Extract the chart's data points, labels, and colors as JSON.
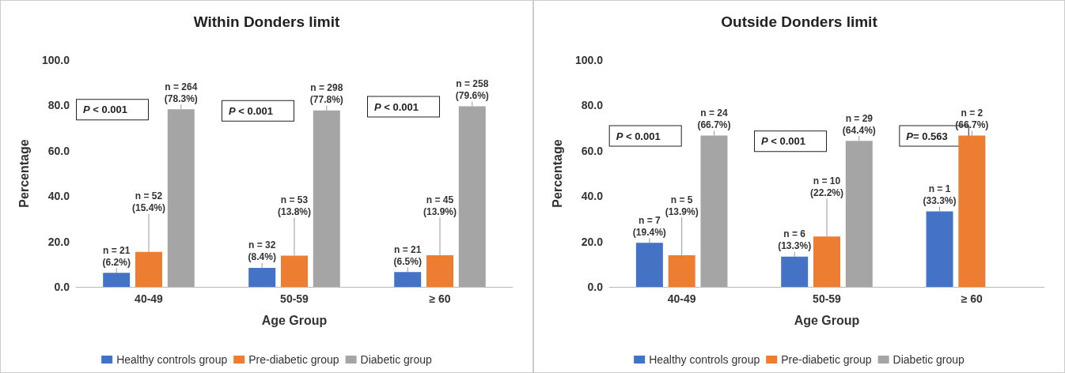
{
  "chart_data": [
    {
      "type": "bar",
      "title": "Within Donders limit",
      "xlabel": "Age Group",
      "ylabel": "Percentage",
      "categories": [
        "40-49",
        "50-59",
        "≥ 60"
      ],
      "series": [
        {
          "name": "Healthy controls group",
          "color": "#4472c4",
          "values": [
            6.2,
            8.4,
            6.5
          ],
          "value_labels": [
            "n = 21\n(6.2%)",
            "n = 32\n(8.4%)",
            "n = 21\n(6.5%)"
          ]
        },
        {
          "name": "Pre-diabetic group",
          "color": "#ed7d31",
          "values": [
            15.4,
            13.8,
            13.9
          ],
          "value_labels": [
            "n = 52\n(15.4%)",
            "n = 53\n(13.8%)",
            "n = 45\n(13.9%)"
          ]
        },
        {
          "name": "Diabetic group",
          "color": "#a5a5a5",
          "values": [
            78.3,
            77.8,
            79.6
          ],
          "value_labels": [
            "n = 264\n(78.3%)",
            "n = 298\n(77.8%)",
            "n = 258\n(79.6%)"
          ]
        }
      ],
      "ylim": [
        0,
        100
      ],
      "yticks": [
        {
          "value": 0,
          "label": "0.0"
        },
        {
          "value": 20,
          "label": "20.0"
        },
        {
          "value": 40,
          "label": "40.0"
        },
        {
          "value": 60,
          "label": "60.0"
        },
        {
          "value": 80,
          "label": "80.0"
        },
        {
          "value": 100,
          "label": "100.0"
        }
      ],
      "annotations": [
        "P < 0.001",
        "P < 0.001",
        "P < 0.001"
      ],
      "legend": "bottom",
      "grid": false
    },
    {
      "type": "bar",
      "title": "Outside Donders limit",
      "xlabel": "Age Group",
      "ylabel": "Percentage",
      "categories": [
        "40-49",
        "50-59",
        "≥ 60"
      ],
      "series": [
        {
          "name": "Healthy controls group",
          "color": "#4472c4",
          "values": [
            19.4,
            13.3,
            33.3
          ],
          "value_labels": [
            "n = 7\n(19.4%)",
            "n = 6\n(13.3%)",
            "n = 1\n(33.3%)"
          ]
        },
        {
          "name": "Pre-diabetic group",
          "color": "#ed7d31",
          "values": [
            13.9,
            22.2,
            66.7
          ],
          "value_labels": [
            "n = 5\n(13.9%)",
            "n = 10\n(22.2%)",
            "n = 2\n(66.7%)"
          ]
        },
        {
          "name": "Diabetic group",
          "color": "#a5a5a5",
          "values": [
            66.7,
            64.4,
            null
          ],
          "value_labels": [
            "n = 24\n(66.7%)",
            "n = 29\n(64.4%)",
            null
          ]
        }
      ],
      "ylim": [
        0,
        100
      ],
      "yticks": [
        {
          "value": 0,
          "label": "0.0"
        },
        {
          "value": 20,
          "label": "20.0"
        },
        {
          "value": 40,
          "label": "40.0"
        },
        {
          "value": 60,
          "label": "60.0"
        },
        {
          "value": 80,
          "label": "80.0"
        },
        {
          "value": 100,
          "label": "100.0"
        }
      ],
      "annotations": [
        "P < 0.001",
        "P < 0.001",
        "P= 0.563"
      ],
      "legend": "bottom",
      "grid": false
    }
  ]
}
